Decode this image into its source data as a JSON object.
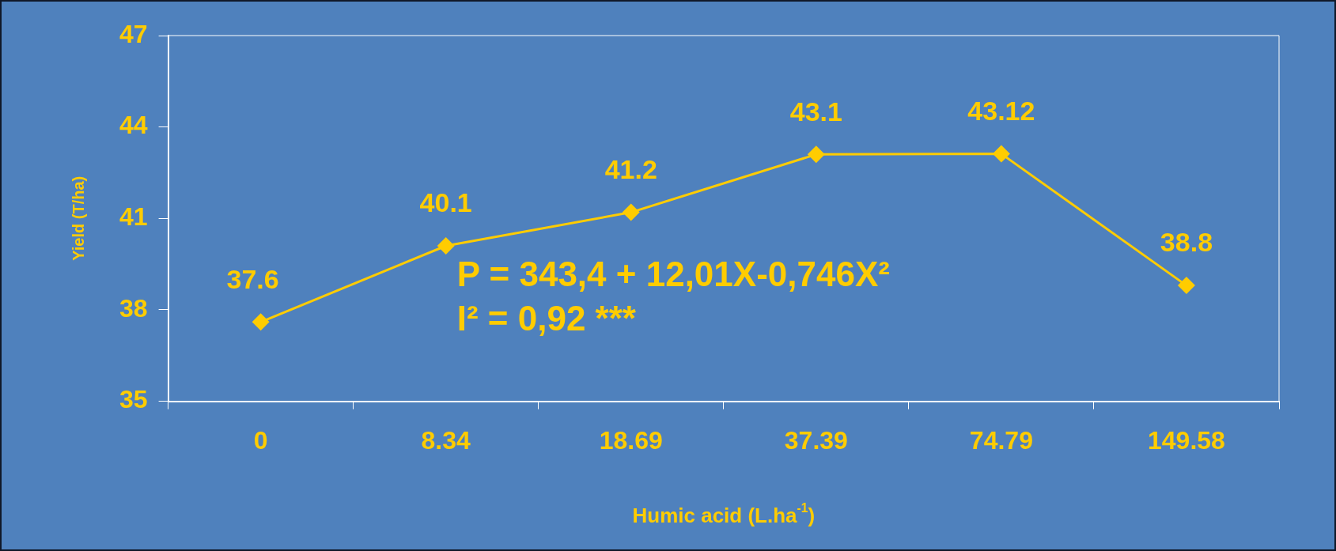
{
  "chart_data": {
    "type": "line",
    "xlabel": "Humic acid (L.ha$^{-1}$)",
    "ylabel": "Yield (T/ha)",
    "categories": [
      "0",
      "8.34",
      "18.69",
      "37.39",
      "74.79",
      "149.58"
    ],
    "series": [
      {
        "color": "#ffcc00",
        "values": [
          37.6,
          40.1,
          41.2,
          43.1,
          43.12,
          38.8
        ]
      }
    ],
    "ylim": [
      35,
      47
    ],
    "yticks": [
      35,
      38,
      41,
      44,
      47
    ],
    "grid": false,
    "legend": false,
    "marker": "diamond",
    "line_style": "solid",
    "data_labels": true,
    "annotations": [
      "P = 343,4 + 12,01X-0,746X²",
      "I² = 0,92 ***"
    ]
  }
}
